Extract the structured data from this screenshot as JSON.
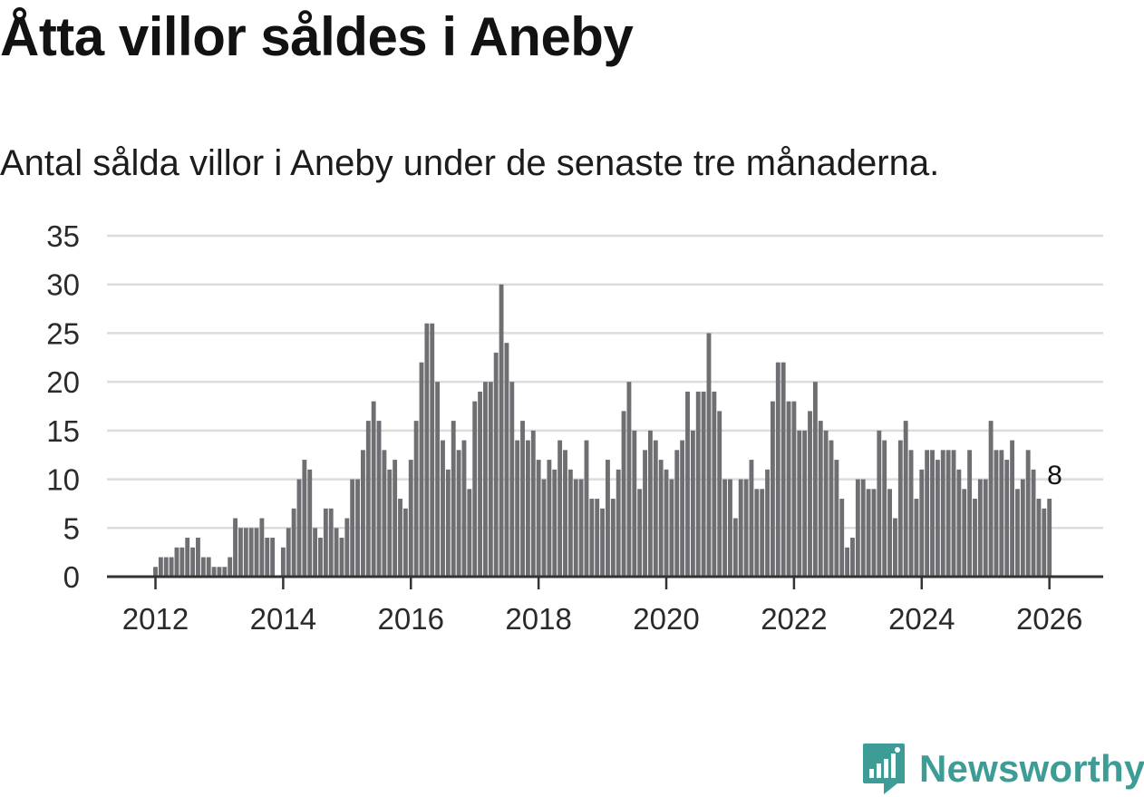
{
  "header": {
    "title": "Åtta villor såldes i Aneby",
    "subtitle": "Antal sålda villor i Aneby under de senaste tre månaderna."
  },
  "branding": {
    "name": "Newsworthy",
    "icon": "newsworthy-logo-icon",
    "color": "#3d9c96"
  },
  "colors": {
    "bar": "#6f6e72",
    "highlight": "#16a49c",
    "grid": "#dcdcdc",
    "axis": "#333333"
  },
  "chart_data": {
    "type": "bar",
    "title": "Åtta villor såldes i Aneby",
    "subtitle": "Antal sålda villor i Aneby under de senaste tre månaderna.",
    "xlabel": "",
    "ylabel": "",
    "ylim": [
      0,
      35
    ],
    "yticks": [
      "0",
      "5",
      "10",
      "15",
      "20",
      "25",
      "30",
      "35"
    ],
    "xticks": [
      "2012",
      "2014",
      "2016",
      "2018",
      "2020",
      "2022",
      "2024",
      "2026"
    ],
    "grid": true,
    "frequency": "monthly",
    "first_month": "2012-01",
    "values": [
      1,
      2,
      2,
      2,
      3,
      3,
      4,
      3,
      4,
      2,
      2,
      1,
      1,
      1,
      2,
      6,
      5,
      5,
      5,
      5,
      6,
      4,
      4,
      0,
      3,
      5,
      7,
      10,
      12,
      11,
      5,
      4,
      7,
      7,
      5,
      4,
      6,
      10,
      10,
      13,
      16,
      18,
      16,
      13,
      11,
      12,
      8,
      7,
      12,
      16,
      22,
      26,
      26,
      20,
      14,
      11,
      16,
      13,
      14,
      9,
      18,
      19,
      20,
      20,
      23,
      30,
      24,
      20,
      14,
      16,
      14,
      15,
      12,
      10,
      12,
      11,
      14,
      13,
      11,
      10,
      10,
      14,
      8,
      8,
      7,
      12,
      8,
      11,
      17,
      20,
      15,
      9,
      13,
      15,
      14,
      12,
      11,
      10,
      13,
      14,
      19,
      15,
      19,
      19,
      25,
      19,
      17,
      10,
      10,
      6,
      10,
      10,
      12,
      9,
      9,
      11,
      18,
      22,
      22,
      18,
      18,
      15,
      15,
      17,
      20,
      16,
      15,
      14,
      12,
      8,
      3,
      4,
      10,
      10,
      9,
      9,
      15,
      14,
      9,
      6,
      14,
      16,
      13,
      8,
      11,
      13,
      13,
      12,
      13,
      13,
      13,
      11,
      9,
      13,
      8,
      10,
      10,
      16,
      13,
      13,
      12,
      14,
      9,
      10,
      13,
      11,
      8,
      7,
      8
    ],
    "highlight": {
      "index": 169,
      "label": "8",
      "value": 8
    }
  }
}
